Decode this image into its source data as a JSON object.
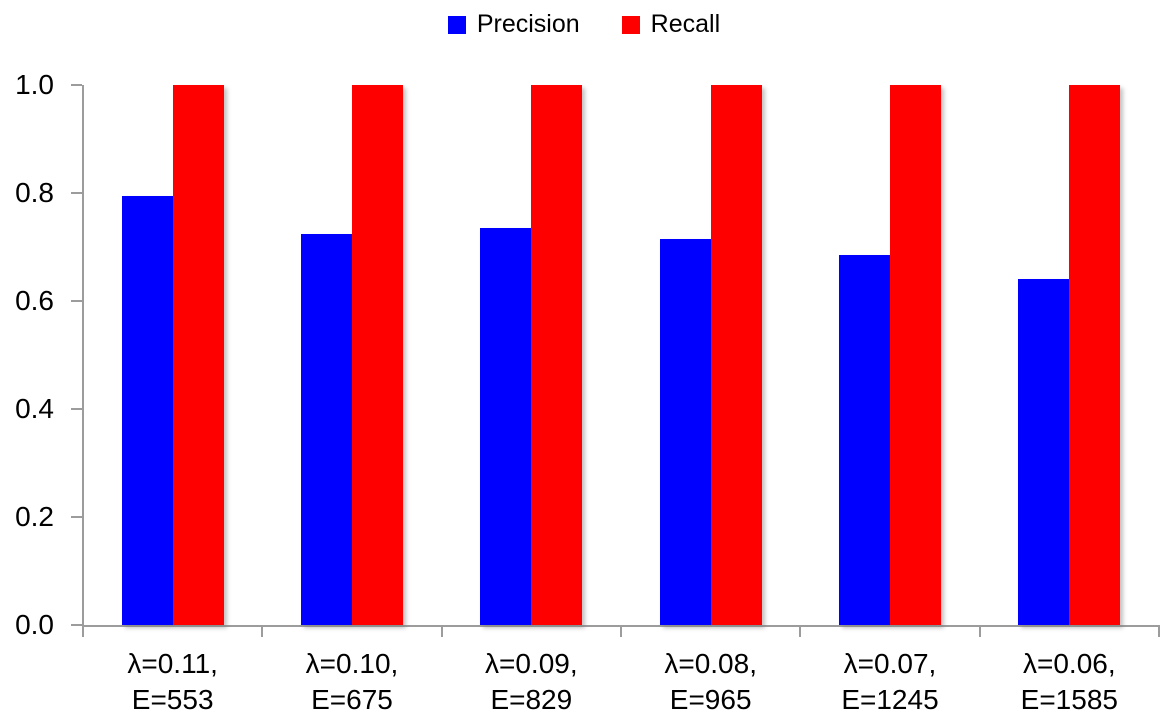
{
  "chart_data": {
    "type": "bar",
    "title": "",
    "xlabel": "",
    "ylabel": "",
    "categories": [
      "λ=0.11, E=553",
      "λ=0.10, E=675",
      "λ=0.09, E=829",
      "λ=0.08, E=965",
      "λ=0.07, E=1245",
      "λ=0.06, E=1585"
    ],
    "category_lines": [
      [
        "λ=0.11,",
        "E=553"
      ],
      [
        "λ=0.10,",
        "E=675"
      ],
      [
        "λ=0.09,",
        "E=829"
      ],
      [
        "λ=0.08,",
        "E=965"
      ],
      [
        "λ=0.07,",
        "E=1245"
      ],
      [
        "λ=0.06,",
        "E=1585"
      ]
    ],
    "series": [
      {
        "name": "Precision",
        "color": "#0000ff",
        "values": [
          0.795,
          0.725,
          0.735,
          0.715,
          0.685,
          0.64
        ]
      },
      {
        "name": "Recall",
        "color": "#ff0000",
        "values": [
          1.0,
          1.0,
          1.0,
          1.0,
          1.0,
          1.0
        ]
      }
    ],
    "ylim": [
      0.0,
      1.0
    ],
    "y_ticks": [
      "1.0",
      "0.8",
      "0.6",
      "0.4",
      "0.2",
      "0.0"
    ],
    "grid": false,
    "legend_position": "top-center",
    "axis_color": "#9c9c9c",
    "text_color": "#000000",
    "background_color": "#ffffff"
  }
}
